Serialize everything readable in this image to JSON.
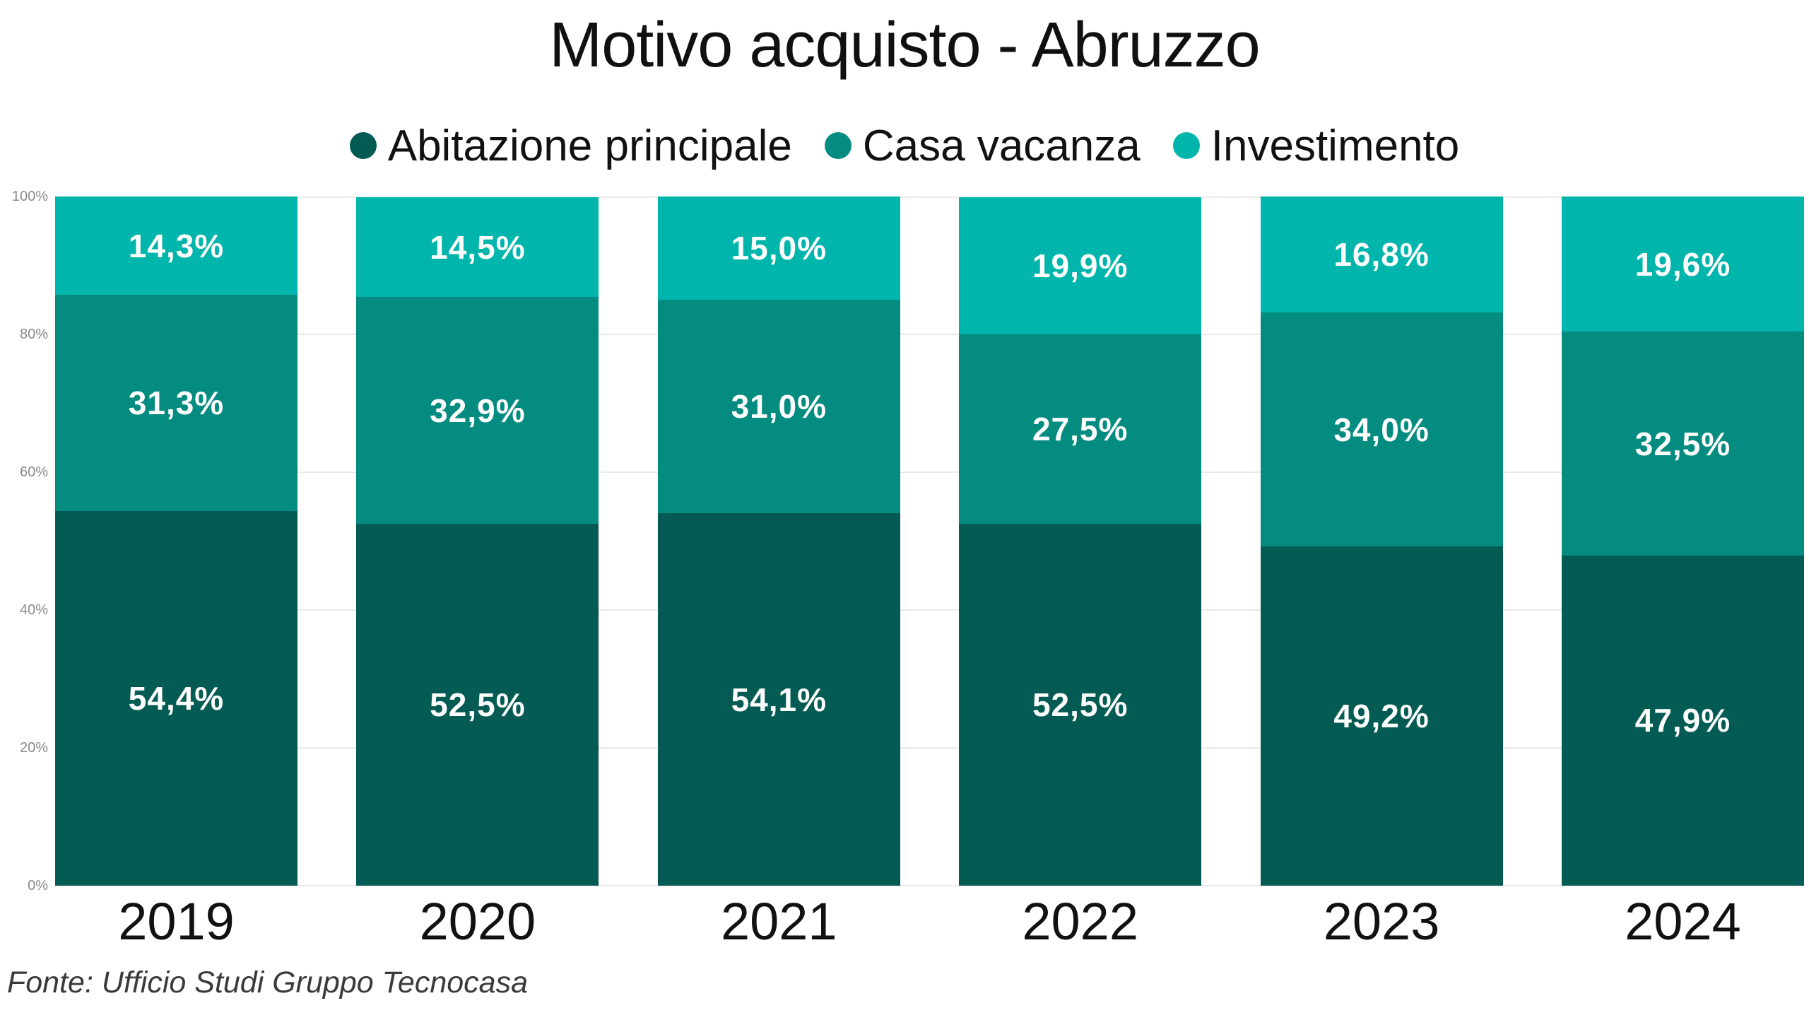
{
  "title": "Motivo acquisto - Abruzzo",
  "legend": {
    "items": [
      {
        "label": "Abitazione principale",
        "color": "#045B53"
      },
      {
        "label": "Casa vacanza",
        "color": "#048C81"
      },
      {
        "label": "Investimento",
        "color": "#00B5AC"
      }
    ]
  },
  "footer": {
    "source": "Fonte: Ufficio Studi Gruppo Tecnocasa"
  },
  "colors": {
    "background": "#FFFFFF",
    "grid": "#EAEAEA",
    "axis_label": "#8A8A8A",
    "data_label": "#FFFFFF",
    "title_text": "#101010"
  },
  "chart_data": {
    "type": "bar",
    "stacked": true,
    "title": "Motivo acquisto - Abruzzo",
    "categories": [
      "2019",
      "2020",
      "2021",
      "2022",
      "2023",
      "2024"
    ],
    "series": [
      {
        "name": "Abitazione principale",
        "color": "#045B53",
        "values": [
          54.4,
          52.5,
          54.1,
          52.5,
          49.2,
          47.9
        ]
      },
      {
        "name": "Casa vacanza",
        "color": "#048C81",
        "values": [
          31.3,
          32.9,
          31.0,
          27.5,
          34.0,
          32.5
        ]
      },
      {
        "name": "Investimento",
        "color": "#00B5AC",
        "values": [
          14.3,
          14.5,
          15.0,
          19.9,
          16.8,
          19.6
        ]
      }
    ],
    "value_format": "percent-comma-1dp",
    "xlabel": "",
    "ylabel": "",
    "ylim": [
      0,
      100
    ],
    "y_ticks": [
      0,
      20,
      40,
      60,
      80,
      100
    ],
    "y_tick_labels": [
      "0%",
      "20%",
      "40%",
      "60%",
      "80%",
      "100%"
    ],
    "grid": true,
    "legend_position": "top"
  }
}
